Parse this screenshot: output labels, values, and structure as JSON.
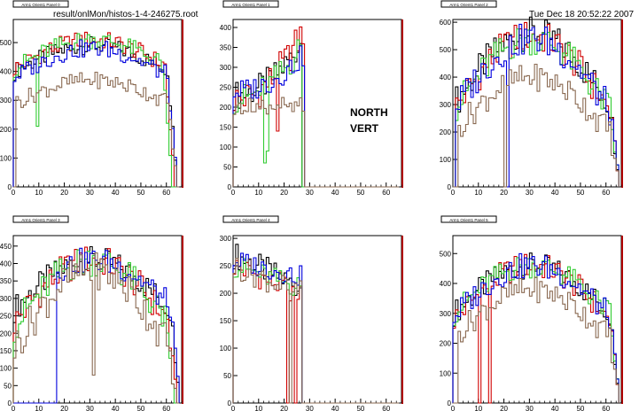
{
  "header": {
    "file_path": "result/onlMon/histos-1-4-246275.root",
    "timestamp": "Tue Dec 18 20:52:22 2007"
  },
  "annotation": {
    "line1": "NORTH",
    "line2": "VERT"
  },
  "colors": {
    "black": "#000000",
    "red": "#d00000",
    "green": "#33cc33",
    "blue": "#0000dd",
    "brown": "#8a6a52",
    "frame_right": "#b00000"
  },
  "chart_data": [
    {
      "type": "line",
      "title": "Arm1 Orient1 Panel 0",
      "xlim": [
        0,
        66
      ],
      "ylim": [
        0,
        580
      ],
      "xticks": [
        0,
        10,
        20,
        30,
        40,
        50,
        60
      ],
      "yticks": [
        0,
        100,
        200,
        300,
        400,
        500
      ],
      "series": [
        {
          "color": "black",
          "profile": "hump",
          "base": 400,
          "amp": 90,
          "cut": 63,
          "start": 0
        },
        {
          "color": "red",
          "profile": "hump",
          "base": 410,
          "amp": 100,
          "cut": 62,
          "start": 0
        },
        {
          "color": "green",
          "profile": "hump",
          "base": 410,
          "amp": 100,
          "cut": 61,
          "start": 0,
          "dips": [
            [
              9,
              210
            ]
          ]
        },
        {
          "color": "blue",
          "profile": "hump",
          "base": 380,
          "amp": 100,
          "cut": 63,
          "start": 0
        },
        {
          "color": "brown",
          "profile": "hump",
          "base": 290,
          "amp": 80,
          "cut": 63,
          "start": 1
        }
      ]
    },
    {
      "type": "line",
      "title": "Arm1 Orient1 Panel 1",
      "xlim": [
        0,
        66
      ],
      "ylim": [
        0,
        420
      ],
      "xticks": [
        0,
        10,
        20,
        30,
        40,
        50,
        60
      ],
      "yticks": [
        0,
        50,
        100,
        150,
        200,
        250,
        300,
        350,
        400
      ],
      "series": [
        {
          "color": "black",
          "profile": "rise",
          "base": 230,
          "amp": 130,
          "cut": 26,
          "start": 0
        },
        {
          "color": "red",
          "profile": "rise",
          "base": 220,
          "amp": 170,
          "cut": 27,
          "start": 0,
          "dips": [
            [
              17,
              140
            ]
          ]
        },
        {
          "color": "green",
          "profile": "rise",
          "base": 220,
          "amp": 130,
          "cut": 26,
          "start": 0,
          "dips": [
            [
              12,
              60
            ],
            [
              13,
              90
            ]
          ]
        },
        {
          "color": "blue",
          "profile": "rise",
          "base": 240,
          "amp": 90,
          "cut": 27,
          "start": 0
        },
        {
          "color": "brown",
          "profile": "flat",
          "base": 200,
          "amp": 20,
          "cut": 27,
          "start": 0
        }
      ]
    },
    {
      "type": "line",
      "title": "Arm1 Orient1 Panel 2",
      "xlim": [
        0,
        66
      ],
      "ylim": [
        0,
        610
      ],
      "xticks": [
        0,
        10,
        20,
        30,
        40,
        50,
        60
      ],
      "yticks": [
        0,
        100,
        200,
        300,
        400,
        500,
        600
      ],
      "series": [
        {
          "color": "black",
          "profile": "hump",
          "base": 300,
          "amp": 260,
          "cut": 64,
          "start": 1
        },
        {
          "color": "red",
          "profile": "hump",
          "base": 280,
          "amp": 270,
          "cut": 64,
          "start": 1
        },
        {
          "color": "green",
          "profile": "hump",
          "base": 280,
          "amp": 260,
          "cut": 64,
          "start": 1
        },
        {
          "color": "blue",
          "profile": "hump",
          "base": 280,
          "amp": 260,
          "cut": 64,
          "start": 1,
          "dips": [
            [
              21,
              0
            ]
          ]
        },
        {
          "color": "brown",
          "profile": "hump",
          "base": 200,
          "amp": 200,
          "cut": 64,
          "start": 2,
          "dips": [
            [
              20,
              0
            ]
          ]
        }
      ]
    },
    {
      "type": "line",
      "title": "Arm1 Orient1 Panel 3",
      "xlim": [
        0,
        66
      ],
      "ylim": [
        0,
        480
      ],
      "xticks": [
        0,
        10,
        20,
        30,
        40,
        50,
        60
      ],
      "yticks": [
        0,
        50,
        100,
        150,
        200,
        250,
        300,
        350,
        400,
        450
      ],
      "series": [
        {
          "color": "black",
          "profile": "hump",
          "base": 270,
          "amp": 140,
          "cut": 64,
          "start": 0
        },
        {
          "color": "red",
          "profile": "hump",
          "base": 230,
          "amp": 180,
          "cut": 63,
          "start": 0
        },
        {
          "color": "green",
          "profile": "hump",
          "base": 220,
          "amp": 190,
          "cut": 62,
          "start": 0
        },
        {
          "color": "blue",
          "profile": "hump",
          "base": 280,
          "amp": 130,
          "cut": 64,
          "start": 17
        },
        {
          "color": "brown",
          "profile": "hump",
          "base": 160,
          "amp": 220,
          "cut": 63,
          "start": 0,
          "dips": [
            [
              31,
              80
            ]
          ]
        }
      ]
    },
    {
      "type": "line",
      "title": "Arm1 Orient1 Panel 4",
      "xlim": [
        0,
        66
      ],
      "ylim": [
        0,
        305
      ],
      "xticks": [
        0,
        10,
        20,
        30,
        40,
        50,
        60
      ],
      "yticks": [
        0,
        50,
        100,
        150,
        200,
        250,
        300
      ],
      "series": [
        {
          "color": "black",
          "profile": "fall",
          "base": 270,
          "amp": -60,
          "cut": 26,
          "start": 0
        },
        {
          "color": "red",
          "profile": "fall",
          "base": 250,
          "amp": -50,
          "cut": 26,
          "start": 0,
          "dips": [
            [
              21,
              0
            ],
            [
              24,
              0
            ]
          ]
        },
        {
          "color": "green",
          "profile": "fall",
          "base": 250,
          "amp": -40,
          "cut": 26,
          "start": 0
        },
        {
          "color": "blue",
          "profile": "fall",
          "base": 260,
          "amp": -30,
          "cut": 26,
          "start": 0
        },
        {
          "color": "brown",
          "profile": "fall",
          "base": 250,
          "amp": -50,
          "cut": 26,
          "start": 0,
          "dips": [
            [
              22,
              0
            ]
          ]
        }
      ]
    },
    {
      "type": "line",
      "title": "Arm1 Orient1 Panel 5",
      "xlim": [
        0,
        66
      ],
      "ylim": [
        0,
        560
      ],
      "xticks": [
        0,
        10,
        20,
        30,
        40,
        50,
        60
      ],
      "yticks": [
        0,
        100,
        200,
        300,
        400,
        500
      ],
      "series": [
        {
          "color": "black",
          "profile": "hump",
          "base": 300,
          "amp": 160,
          "cut": 64,
          "start": 0
        },
        {
          "color": "red",
          "profile": "hump",
          "base": 280,
          "amp": 180,
          "cut": 64,
          "start": 0,
          "dips": [
            [
              10,
              0
            ],
            [
              14,
              0
            ]
          ]
        },
        {
          "color": "green",
          "profile": "hump",
          "base": 300,
          "amp": 160,
          "cut": 64,
          "start": 0
        },
        {
          "color": "blue",
          "profile": "hump",
          "base": 290,
          "amp": 170,
          "cut": 64,
          "start": 0
        },
        {
          "color": "brown",
          "profile": "hump",
          "base": 220,
          "amp": 160,
          "cut": 64,
          "start": 2
        }
      ]
    }
  ]
}
